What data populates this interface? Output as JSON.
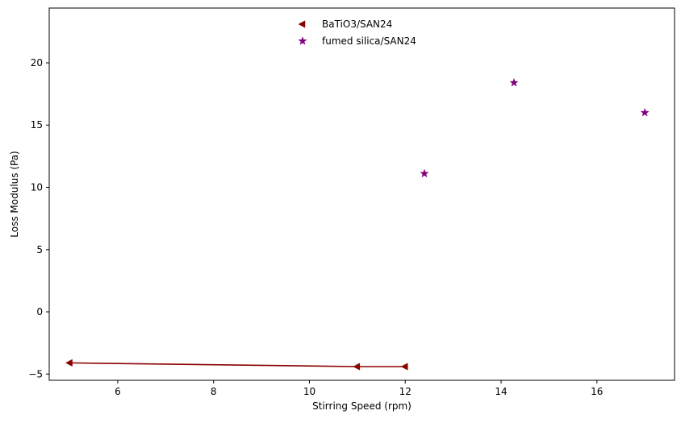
{
  "chart_data": {
    "type": "scatter",
    "title": "",
    "xlabel": "Stirring Speed (rpm)",
    "ylabel": "Loss Modulus (Pa)",
    "xlim": [
      4.57,
      17.62
    ],
    "ylim": [
      -5.5,
      24.4
    ],
    "xticks": [
      6,
      8,
      10,
      12,
      14,
      16
    ],
    "yticks": [
      -5,
      0,
      5,
      10,
      15,
      20
    ],
    "grid": false,
    "legend_position": "top-center",
    "series": [
      {
        "name": "BaTiO3/SAN24",
        "marker": "triangle-left",
        "connected": true,
        "color": "#8b0000",
        "points": [
          {
            "x": 5.0,
            "y": -4.1
          },
          {
            "x": 11.0,
            "y": -4.4
          },
          {
            "x": 12.0,
            "y": -4.4
          }
        ]
      },
      {
        "name": "fumed silica/SAN24",
        "marker": "star",
        "connected": false,
        "color": "#800080",
        "points": [
          {
            "x": 12.4,
            "y": 11.1
          },
          {
            "x": 14.27,
            "y": 18.4
          },
          {
            "x": 17.0,
            "y": 16.0
          }
        ]
      }
    ]
  }
}
